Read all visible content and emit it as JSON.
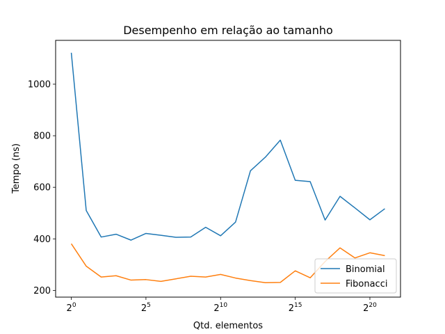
{
  "chart_data": {
    "type": "line",
    "title": "Desempenho em relação ao tamanho",
    "xlabel": "Qtd. elementos",
    "ylabel": "Tempo (ns)",
    "x_scale": "log2",
    "x_exponents": [
      0,
      1,
      2,
      3,
      4,
      5,
      6,
      7,
      8,
      9,
      10,
      11,
      12,
      13,
      14,
      15,
      16,
      17,
      18,
      19,
      20,
      21
    ],
    "xticks": [
      {
        "base": "2",
        "exp": "0",
        "value": 0
      },
      {
        "base": "2",
        "exp": "5",
        "value": 5
      },
      {
        "base": "2",
        "exp": "10",
        "value": 10
      },
      {
        "base": "2",
        "exp": "15",
        "value": 15
      },
      {
        "base": "2",
        "exp": "20",
        "value": 20
      }
    ],
    "yticks": [
      {
        "label": "200",
        "value": 200
      },
      {
        "label": "400",
        "value": 400
      },
      {
        "label": "600",
        "value": 600
      },
      {
        "label": "800",
        "value": 800
      },
      {
        "label": "1000",
        "value": 1000
      }
    ],
    "xlim": [
      -1.05,
      22.05
    ],
    "ylim": [
      174,
      1170
    ],
    "grid": false,
    "legend_position": "lower-right",
    "series": [
      {
        "name": "Binomial",
        "color": "#1f77b4",
        "values": [
          1122,
          510,
          407,
          418,
          395,
          421,
          414,
          406,
          407,
          445,
          412,
          465,
          664,
          717,
          783,
          627,
          622,
          473,
          565,
          520,
          474,
          517
        ]
      },
      {
        "name": "Fibonacci",
        "color": "#ff7f0e",
        "values": [
          381,
          294,
          252,
          257,
          240,
          242,
          235,
          245,
          255,
          252,
          262,
          248,
          238,
          230,
          231,
          276,
          249,
          312,
          365,
          326,
          346,
          335
        ]
      }
    ]
  }
}
